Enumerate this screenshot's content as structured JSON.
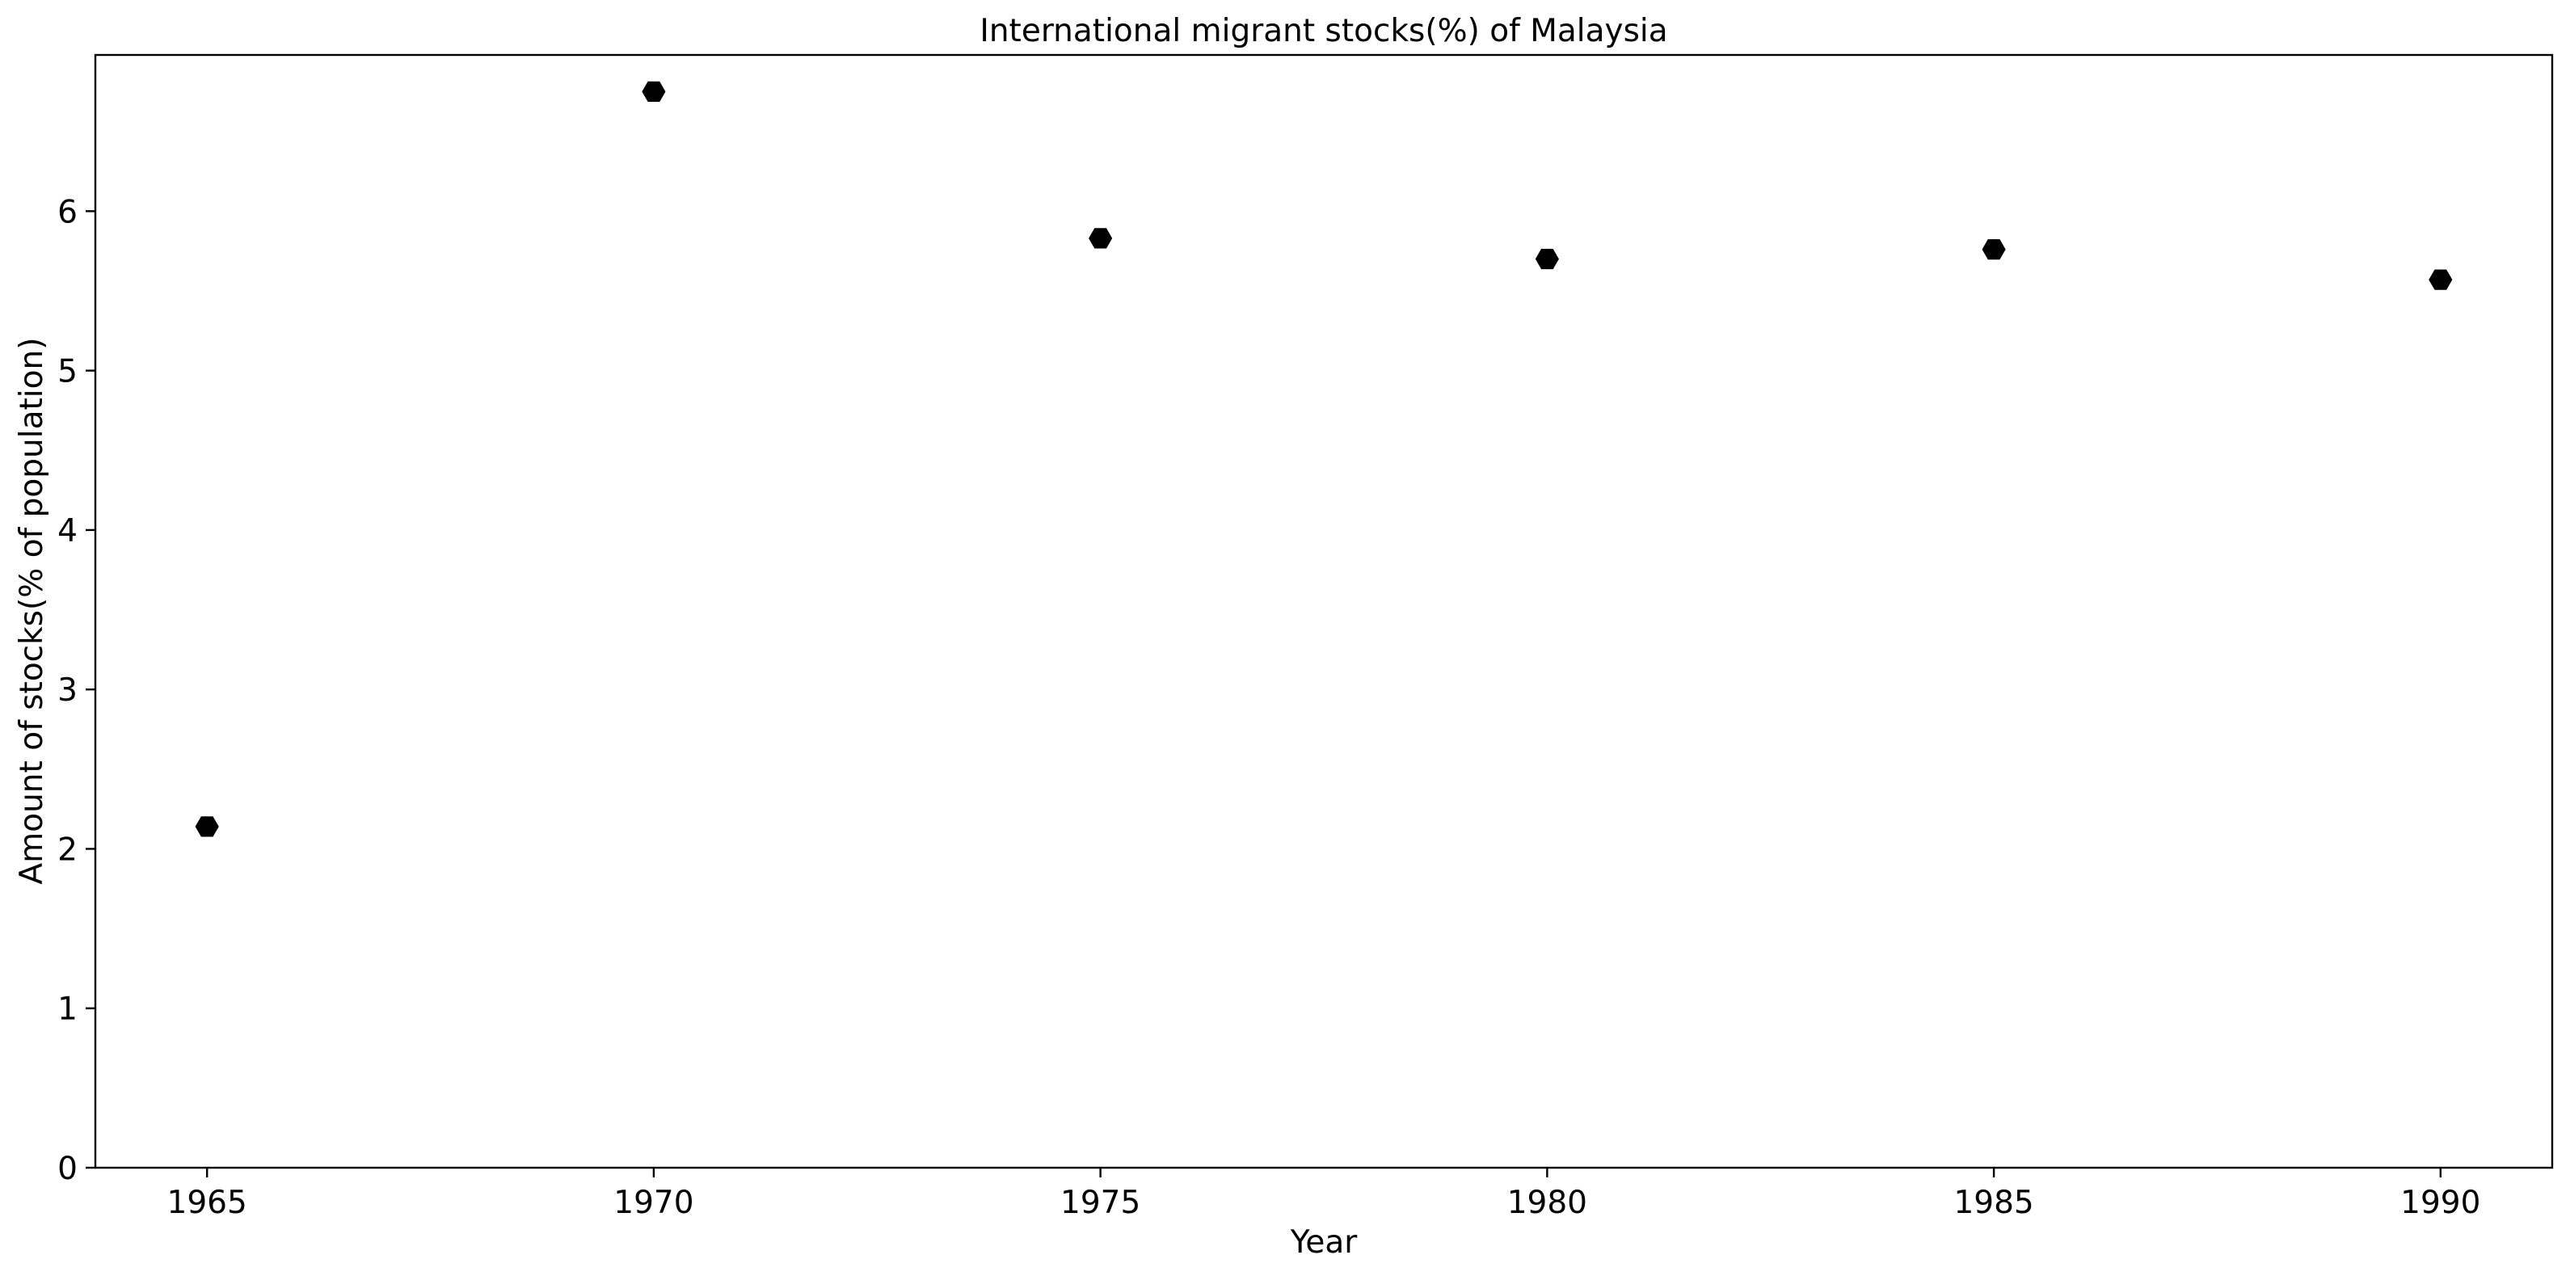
{
  "chart_data": {
    "type": "scatter",
    "title": "International migrant stocks(%) of Malaysia",
    "xlabel": "Year",
    "ylabel": "Amount of stocks(% of population)",
    "x": [
      1965,
      1970,
      1975,
      1980,
      1985,
      1990
    ],
    "y": [
      2.14,
      6.75,
      5.83,
      5.7,
      5.76,
      5.57
    ],
    "xlim": [
      1963.75,
      1991.25
    ],
    "ylim": [
      0,
      6.98
    ],
    "xticks": [
      1965,
      1970,
      1975,
      1980,
      1985,
      1990
    ],
    "yticks": [
      0,
      1,
      2,
      3,
      4,
      5,
      6
    ],
    "marker": "hexagon",
    "color": "#000000",
    "grid": false,
    "legend": false
  }
}
